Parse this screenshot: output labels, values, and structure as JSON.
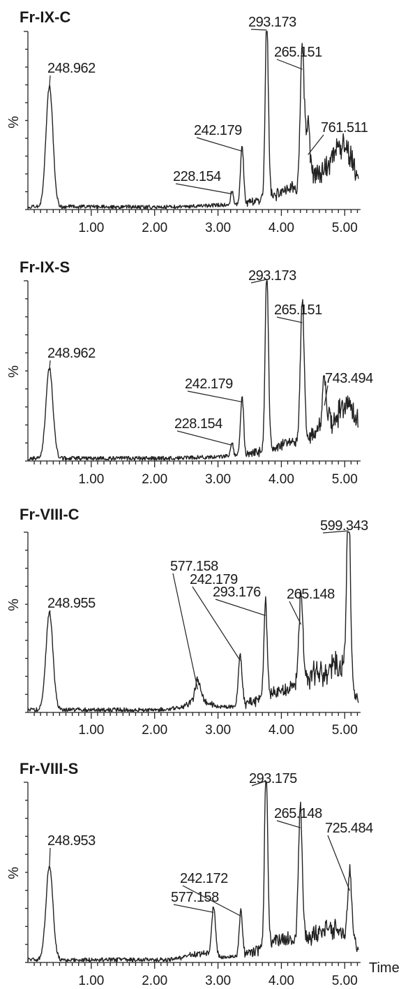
{
  "chart_data": [
    {
      "type": "line",
      "title": "Fr-IX-C",
      "ylabel": "%",
      "xlabel": "",
      "xlim": [
        0,
        5.25
      ],
      "ylim": [
        0,
        100
      ],
      "x_ticks": [
        "1.00",
        "2.00",
        "3.00",
        "4.00",
        "5.00"
      ],
      "peaks": [
        {
          "x": 0.34,
          "y": 68,
          "w": 0.055,
          "label": "248.962"
        },
        {
          "x": 3.22,
          "y": 8,
          "w": 0.02,
          "label": "228.154"
        },
        {
          "x": 3.38,
          "y": 32,
          "w": 0.025,
          "label": "242.179"
        },
        {
          "x": 3.77,
          "y": 100,
          "w": 0.025,
          "label": "293.173"
        },
        {
          "x": 4.33,
          "y": 78,
          "w": 0.03,
          "label": "265.151"
        },
        {
          "x": 4.42,
          "y": 30,
          "w": 0.03,
          "label": "761.511"
        }
      ]
    },
    {
      "type": "line",
      "title": "Fr-IX-S",
      "ylabel": "%",
      "xlabel": "",
      "xlim": [
        0,
        5.25
      ],
      "ylim": [
        0,
        100
      ],
      "x_ticks": [
        "1.00",
        "2.00",
        "3.00",
        "4.00",
        "5.00"
      ],
      "peaks": [
        {
          "x": 0.34,
          "y": 50,
          "w": 0.055,
          "label": "248.962"
        },
        {
          "x": 3.22,
          "y": 8,
          "w": 0.02,
          "label": "228.154"
        },
        {
          "x": 3.38,
          "y": 32,
          "w": 0.025,
          "label": "242.179"
        },
        {
          "x": 3.77,
          "y": 100,
          "w": 0.025,
          "label": "293.173"
        },
        {
          "x": 4.33,
          "y": 76,
          "w": 0.03,
          "label": "265.151"
        },
        {
          "x": 4.68,
          "y": 30,
          "w": 0.03,
          "label": "743.494"
        }
      ]
    },
    {
      "type": "line",
      "title": "Fr-VIII-C",
      "ylabel": "%",
      "xlabel": "",
      "xlim": [
        0,
        5.25
      ],
      "ylim": [
        0,
        100
      ],
      "x_ticks": [
        "1.00",
        "2.00",
        "3.00",
        "4.00",
        "5.00"
      ],
      "peaks": [
        {
          "x": 0.34,
          "y": 54,
          "w": 0.055,
          "label": "248.955"
        },
        {
          "x": 2.68,
          "y": 12,
          "w": 0.04,
          "label": "577.158"
        },
        {
          "x": 3.35,
          "y": 28,
          "w": 0.03,
          "label": "242.179"
        },
        {
          "x": 3.75,
          "y": 53,
          "w": 0.025,
          "label": "293.176"
        },
        {
          "x": 4.31,
          "y": 48,
          "w": 0.03,
          "label": "265.148"
        },
        {
          "x": 5.06,
          "y": 100,
          "w": 0.03,
          "label": "599.343"
        }
      ]
    },
    {
      "type": "line",
      "title": "Fr-VIII-S",
      "ylabel": "%",
      "xlabel": "Time",
      "xlim": [
        0,
        5.25
      ],
      "ylim": [
        0,
        100
      ],
      "x_ticks": [
        "1.00",
        "2.00",
        "3.00",
        "4.00",
        "5.00"
      ],
      "peaks": [
        {
          "x": 0.34,
          "y": 52,
          "w": 0.055,
          "label": "248.953"
        },
        {
          "x": 2.93,
          "y": 27,
          "w": 0.03,
          "label": "577.158"
        },
        {
          "x": 3.36,
          "y": 25,
          "w": 0.025,
          "label": "242.172"
        },
        {
          "x": 3.76,
          "y": 100,
          "w": 0.025,
          "label": "293.175"
        },
        {
          "x": 4.3,
          "y": 74,
          "w": 0.03,
          "label": "265.148"
        },
        {
          "x": 5.08,
          "y": 39,
          "w": 0.03,
          "label": "725.484"
        }
      ]
    }
  ]
}
